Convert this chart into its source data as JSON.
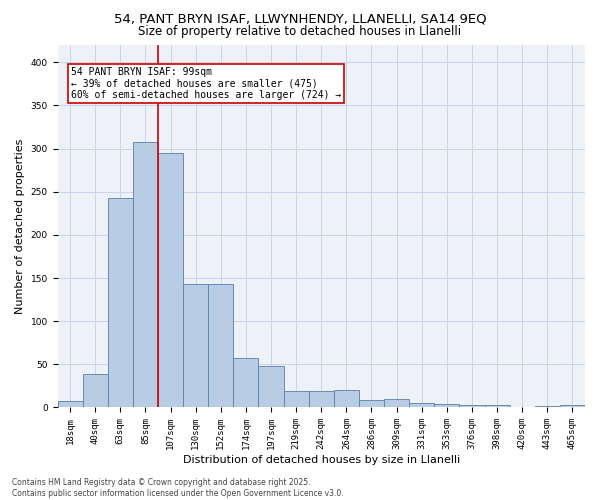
{
  "title_line1": "54, PANT BRYN ISAF, LLWYNHENDY, LLANELLI, SA14 9EQ",
  "title_line2": "Size of property relative to detached houses in Llanelli",
  "xlabel": "Distribution of detached houses by size in Llanelli",
  "ylabel": "Number of detached properties",
  "categories": [
    "18sqm",
    "40sqm",
    "63sqm",
    "85sqm",
    "107sqm",
    "130sqm",
    "152sqm",
    "174sqm",
    "197sqm",
    "219sqm",
    "242sqm",
    "264sqm",
    "286sqm",
    "309sqm",
    "331sqm",
    "353sqm",
    "376sqm",
    "398sqm",
    "420sqm",
    "443sqm",
    "465sqm"
  ],
  "values": [
    8,
    39,
    243,
    308,
    295,
    143,
    143,
    57,
    48,
    19,
    19,
    20,
    9,
    10,
    5,
    4,
    3,
    3,
    1,
    2,
    3
  ],
  "bar_color": "#b8cce4",
  "bar_edge_color": "#5580b0",
  "vline_color": "#cc0000",
  "annotation_text": "54 PANT BRYN ISAF: 99sqm\n← 39% of detached houses are smaller (475)\n60% of semi-detached houses are larger (724) →",
  "annotation_box_color": "#ffffff",
  "annotation_box_edge": "#cc0000",
  "ylim": [
    0,
    420
  ],
  "yticks": [
    0,
    50,
    100,
    150,
    200,
    250,
    300,
    350,
    400
  ],
  "grid_color": "#c8d4e8",
  "background_color": "#eef2f8",
  "footer_text": "Contains HM Land Registry data © Crown copyright and database right 2025.\nContains public sector information licensed under the Open Government Licence v3.0.",
  "title_fontsize": 9.5,
  "subtitle_fontsize": 8.5,
  "axis_label_fontsize": 8,
  "tick_fontsize": 6.5,
  "annotation_fontsize": 7,
  "footer_fontsize": 5.5
}
